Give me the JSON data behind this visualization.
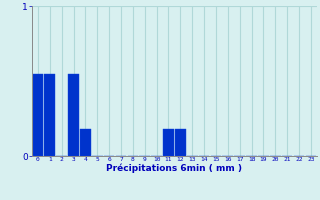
{
  "categories": [
    0,
    1,
    2,
    3,
    4,
    5,
    6,
    7,
    8,
    9,
    10,
    11,
    12,
    13,
    14,
    15,
    16,
    17,
    18,
    19,
    20,
    21,
    22,
    23
  ],
  "values": [
    0.55,
    0.55,
    0.0,
    0.55,
    0.18,
    0.0,
    0.0,
    0.0,
    0.0,
    0.0,
    0.0,
    0.18,
    0.18,
    0.0,
    0.0,
    0.0,
    0.0,
    0.0,
    0.0,
    0.0,
    0.0,
    0.0,
    0.0,
    0.0
  ],
  "bar_color": "#0033cc",
  "bar_edge_color": "#1144dd",
  "background_color": "#d8f0f0",
  "grid_color": "#b0d8d8",
  "xlabel": "Précipitations 6min ( mm )",
  "xlabel_color": "#0000bb",
  "tick_color": "#0000bb",
  "ylim": [
    0,
    1.0
  ],
  "xlim": [
    -0.5,
    23.5
  ],
  "yticks": [
    0,
    1
  ],
  "xtick_labels": [
    "0",
    "1",
    "2",
    "3",
    "4",
    "5",
    "6",
    "7",
    "8",
    "9",
    "10",
    "11",
    "12",
    "13",
    "14",
    "15",
    "16",
    "17",
    "18",
    "19",
    "20",
    "21",
    "22",
    "23"
  ]
}
